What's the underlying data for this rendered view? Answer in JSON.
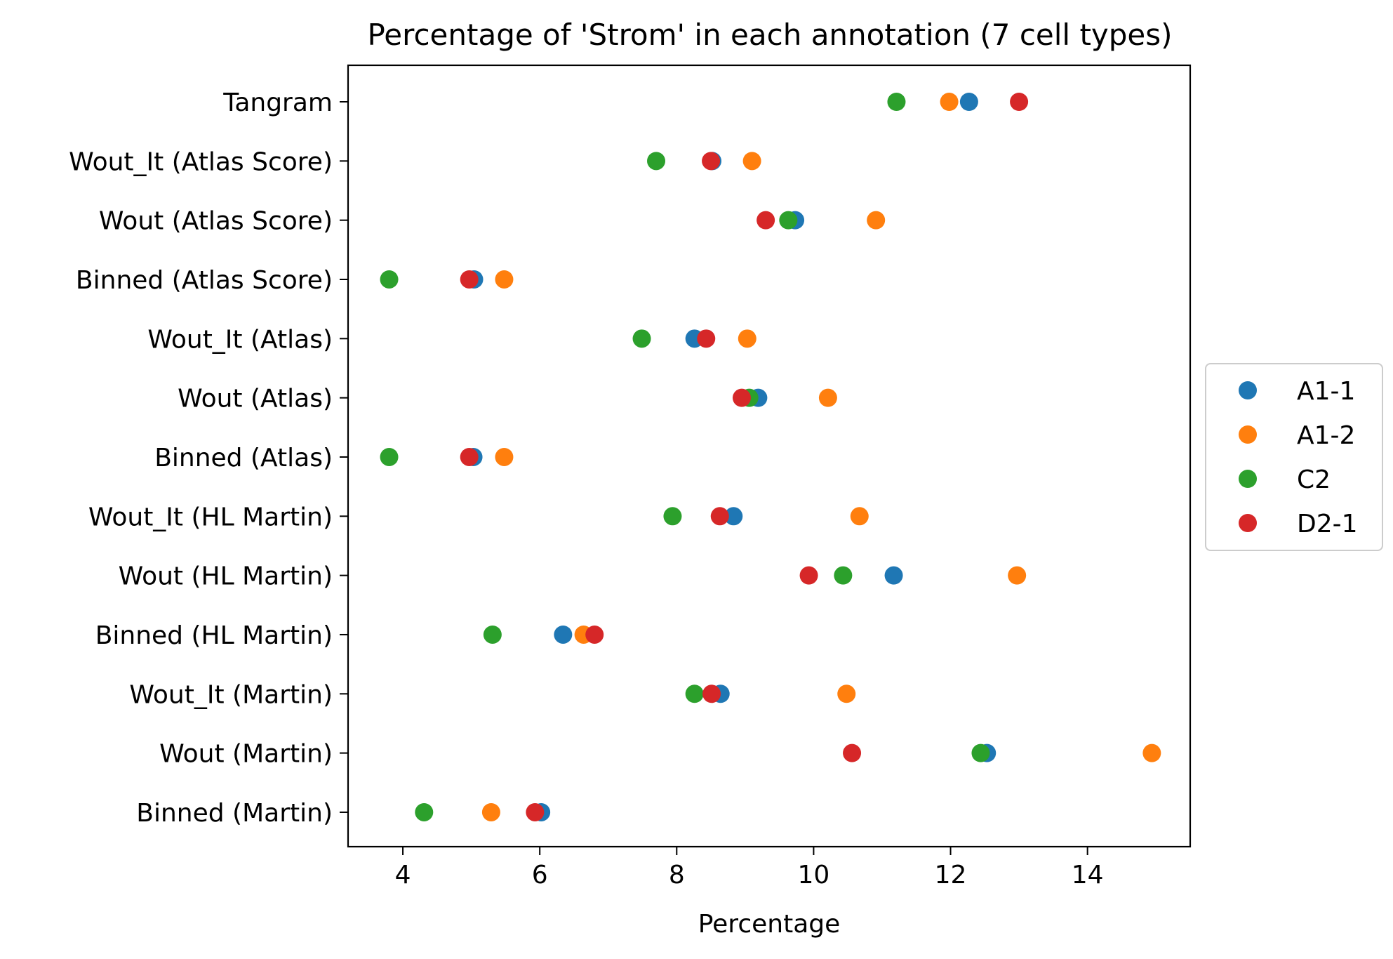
{
  "chart_data": {
    "type": "scatter",
    "title": "Percentage of 'Strom' in each annotation (7 cell types)",
    "xlabel": "Percentage",
    "ylabel": "",
    "xlim": [
      3.2,
      15.5
    ],
    "x_ticks": [
      4,
      6,
      8,
      10,
      12,
      14
    ],
    "x_tick_labels": [
      "4",
      "6",
      "8",
      "10",
      "12",
      "14"
    ],
    "categories": [
      "Tangram",
      "Wout_It (Atlas Score)",
      "Wout (Atlas Score)",
      "Binned (Atlas Score)",
      "Wout_It (Atlas)",
      "Wout (Atlas)",
      "Binned (Atlas)",
      "Wout_It (HL Martin)",
      "Wout (HL Martin)",
      "Binned (HL Martin)",
      "Wout_It (Martin)",
      "Wout (Martin)",
      "Binned (Martin)"
    ],
    "series": [
      {
        "name": "A1-1",
        "color": "#1f77b4",
        "values": [
          12.27,
          8.52,
          9.73,
          5.04,
          8.26,
          9.19,
          5.03,
          8.83,
          11.17,
          6.34,
          8.64,
          12.53,
          6.02
        ]
      },
      {
        "name": "A1-2",
        "color": "#ff7f0e",
        "values": [
          11.98,
          9.1,
          10.91,
          5.48,
          9.03,
          10.21,
          5.48,
          10.67,
          12.97,
          6.64,
          10.48,
          14.94,
          5.29
        ]
      },
      {
        "name": "C2",
        "color": "#2ca02c",
        "values": [
          11.21,
          7.7,
          9.63,
          3.8,
          7.49,
          9.06,
          3.8,
          7.94,
          10.43,
          5.31,
          8.26,
          12.44,
          4.31
        ]
      },
      {
        "name": "D2-1",
        "color": "#d62728",
        "values": [
          13.0,
          8.5,
          9.3,
          4.97,
          8.43,
          8.95,
          4.97,
          8.63,
          9.93,
          6.8,
          8.51,
          10.56,
          5.93
        ]
      }
    ],
    "legend_position": "center-right",
    "grid": false
  }
}
